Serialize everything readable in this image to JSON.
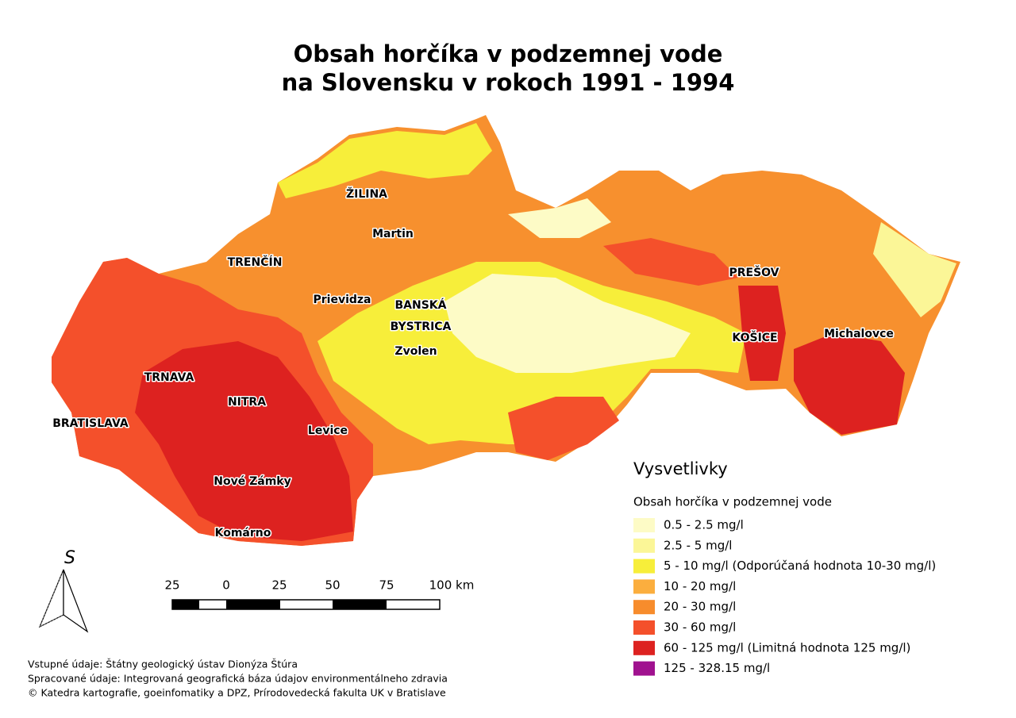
{
  "title": [
    "Obsah horčíka v podzemnej vode",
    "na Slovensku v rokoch 1991 - 1994"
  ],
  "cities": [
    {
      "label": "ŽILINA"
    },
    {
      "label": "Martin"
    },
    {
      "label": "TRENČÍN"
    },
    {
      "label": "Prievidza"
    },
    {
      "lines": [
        "BANSKÁ",
        "BYSTRICA"
      ]
    },
    {
      "label": "Zvolen"
    },
    {
      "label": "PREŠOV"
    },
    {
      "label": "KOŠICE"
    },
    {
      "label": "Michalovce"
    },
    {
      "label": "TRNAVA"
    },
    {
      "label": "NITRA"
    },
    {
      "label": "BRATISLAVA"
    },
    {
      "label": "Levice"
    },
    {
      "label": "Nové Zámky"
    },
    {
      "label": "Komárno"
    }
  ],
  "legend": {
    "heading": "Vysvetlivky",
    "subtitle": "Obsah horčíka v podzemnej vode",
    "items": [
      {
        "label": "0.5 - 2.5 mg/l",
        "color": "#fdfbc6"
      },
      {
        "label": "2.5 - 5 mg/l",
        "color": "#fbf697"
      },
      {
        "label": "5 - 10 mg/l  (Odporúčaná hodnota 10-30 mg/l)",
        "color": "#f7ee3a"
      },
      {
        "label": "10 - 20 mg/l",
        "color": "#fbae3e"
      },
      {
        "label": "20 - 30 mg/l",
        "color": "#f78c2c"
      },
      {
        "label": "30 - 60 mg/l",
        "color": "#f4502b"
      },
      {
        "label": "60 - 125 mg/l (Limitná hodnota 125 mg/l)",
        "color": "#dd2220"
      },
      {
        "label": "125 - 328.15 mg/l",
        "color": "#a0128f"
      }
    ]
  },
  "scale_bar": {
    "labels": [
      "25",
      "0",
      "25",
      "50",
      "75",
      "100 km"
    ]
  },
  "north_arrow": "S",
  "credits": [
    "Vstupné údaje: Štátny geologický ústav Dionýza Štúra",
    "Spracované údaje: Integrovaná geografická báza údajov environmentálneho zdravia",
    "© Katedra kartografie, goeinfomatiky a DPZ, Prírodovedecká fakulta UK v Bratislave"
  ]
}
